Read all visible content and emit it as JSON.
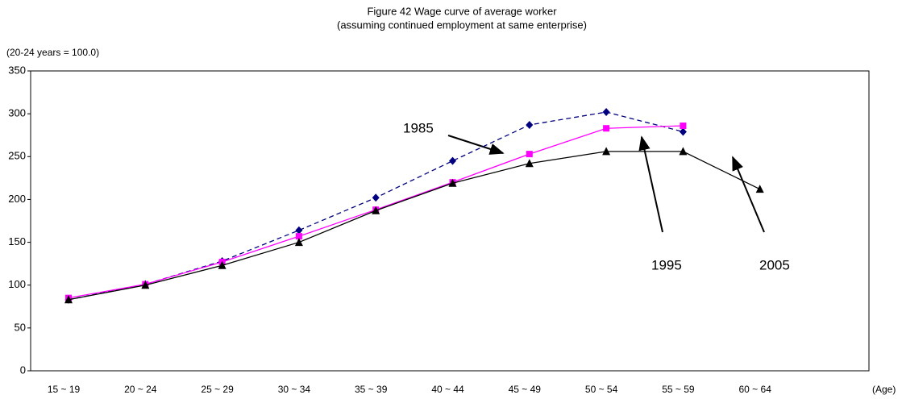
{
  "chart_data": {
    "type": "line",
    "title": "Figure 42  Wage curve of average worker",
    "subtitle": "(assuming continued employment at same enterprise)",
    "y_label": "(20-24 years = 100.0)",
    "x_label": "(Age)",
    "categories": [
      "15 ~ 19",
      "20 ~ 24",
      "25 ~ 29",
      "30 ~ 34",
      "35 ~ 39",
      "40 ~ 44",
      "45 ~ 49",
      "50 ~ 54",
      "55 ~ 59",
      "60 ~ 64"
    ],
    "series": [
      {
        "name": "1985",
        "color": "#000080",
        "dash": true,
        "marker": "diamond",
        "values": [
          83,
          101,
          128,
          164,
          202,
          245,
          287,
          302,
          279,
          null
        ]
      },
      {
        "name": "1995",
        "color": "#ff00ff",
        "dash": false,
        "marker": "square",
        "values": [
          85,
          101,
          127,
          157,
          188,
          220,
          253,
          283,
          286,
          null
        ]
      },
      {
        "name": "2005",
        "color": "#000000",
        "dash": false,
        "marker": "triangle",
        "values": [
          83,
          100,
          123,
          150,
          187,
          219,
          242,
          256,
          256,
          212
        ]
      }
    ],
    "ylim": [
      0,
      350
    ],
    "yticks": [
      0,
      50,
      100,
      150,
      200,
      250,
      300,
      350
    ],
    "grid": false
  }
}
